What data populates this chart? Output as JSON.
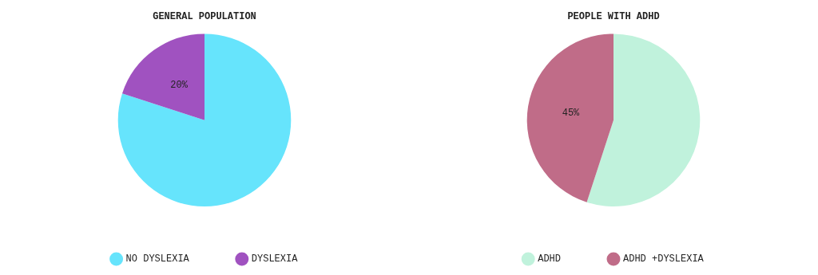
{
  "chart_data": [
    {
      "type": "pie",
      "title": "GENERAL POPULATION",
      "categories": [
        "NO DYSLEXIA",
        "DYSLEXIA"
      ],
      "values": [
        80,
        20
      ],
      "colors": [
        "#66e4fc",
        "#a052c0"
      ],
      "value_labels": [
        null,
        "20%"
      ],
      "legend": "bottom"
    },
    {
      "type": "pie",
      "title": "PEOPLE WITH ADHD",
      "categories": [
        "ADHD",
        "ADHD +DYSLEXIA"
      ],
      "values": [
        55,
        45
      ],
      "colors": [
        "#c0f2dc",
        "#c06c88"
      ],
      "value_labels": [
        null,
        "45%"
      ],
      "legend": "bottom"
    }
  ]
}
